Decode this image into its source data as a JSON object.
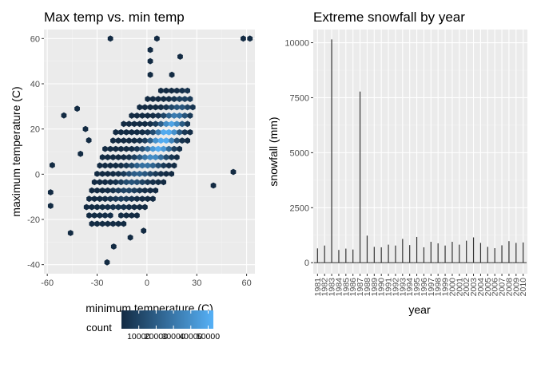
{
  "chart_data": [
    {
      "type": "hexbin",
      "title": "Max temp vs. min temp",
      "xlabel": "minimum temperature (C)",
      "ylabel": "maximum temperature (C)",
      "xlim": [
        -62,
        65
      ],
      "ylim": [
        -44,
        64
      ],
      "xticks": [
        -60,
        -30,
        0,
        30,
        60
      ],
      "yticks": [
        -40,
        -20,
        0,
        20,
        40,
        60
      ],
      "grid": true,
      "legend": {
        "title": "count",
        "placement": "bottom",
        "min": 0,
        "max": 53000,
        "ticks": [
          10000,
          20000,
          30000,
          40000,
          50000
        ],
        "colors": [
          "#132B43",
          "#56B1F7"
        ]
      },
      "points": [
        {
          "x": -22,
          "y": 60,
          "count": 1
        },
        {
          "x": 6,
          "y": 60,
          "count": 1
        },
        {
          "x": 58,
          "y": 60,
          "count": 1
        },
        {
          "x": 62,
          "y": 60,
          "count": 1
        },
        {
          "x": 2,
          "y": 55,
          "count": 1
        },
        {
          "x": 2,
          "y": 50,
          "count": 1
        },
        {
          "x": 20,
          "y": 52,
          "count": 1
        },
        {
          "x": 2,
          "y": 44,
          "count": 1
        },
        {
          "x": 15,
          "y": 44,
          "count": 1
        },
        {
          "x": -50,
          "y": 26,
          "count": 1
        },
        {
          "x": -42,
          "y": 29,
          "count": 1
        },
        {
          "x": -37,
          "y": 20,
          "count": 1
        },
        {
          "x": -35,
          "y": 15,
          "count": 1
        },
        {
          "x": -40,
          "y": 9,
          "count": 1
        },
        {
          "x": -57,
          "y": 4,
          "count": 1
        },
        {
          "x": -58,
          "y": -8,
          "count": 1
        },
        {
          "x": -58,
          "y": -14,
          "count": 1
        },
        {
          "x": 52,
          "y": 1,
          "count": 1
        },
        {
          "x": 40,
          "y": -5,
          "count": 1
        },
        {
          "x": -2,
          "y": -25,
          "count": 1
        },
        {
          "x": -10,
          "y": -28,
          "count": 1
        },
        {
          "x": -20,
          "y": -32,
          "count": 1
        },
        {
          "x": -24,
          "y": -39,
          "count": 1
        },
        {
          "x": -46,
          "y": -26,
          "count": 1
        }
      ]
    },
    {
      "type": "bar",
      "title": "Extreme snowfall by year",
      "xlabel": "year",
      "ylabel": "snowfall (mm)",
      "ylim": [
        -500,
        10600
      ],
      "yticks": [
        0,
        2500,
        5000,
        7500,
        10000
      ],
      "grid": true,
      "categories": [
        "1981",
        "1982",
        "1983",
        "1984",
        "1985",
        "1986",
        "1987",
        "1988",
        "1989",
        "1990",
        "1991",
        "1992",
        "1993",
        "1994",
        "1995",
        "1996",
        "1997",
        "1998",
        "1999",
        "2000",
        "2001",
        "2002",
        "2003",
        "2004",
        "2005",
        "2006",
        "2007",
        "2008",
        "2009",
        "2010"
      ],
      "values": [
        650,
        780,
        10150,
        580,
        640,
        600,
        7780,
        1230,
        720,
        700,
        820,
        780,
        1080,
        800,
        1170,
        700,
        950,
        880,
        780,
        950,
        820,
        1000,
        1150,
        900,
        720,
        660,
        790,
        980,
        900,
        920
      ]
    }
  ]
}
